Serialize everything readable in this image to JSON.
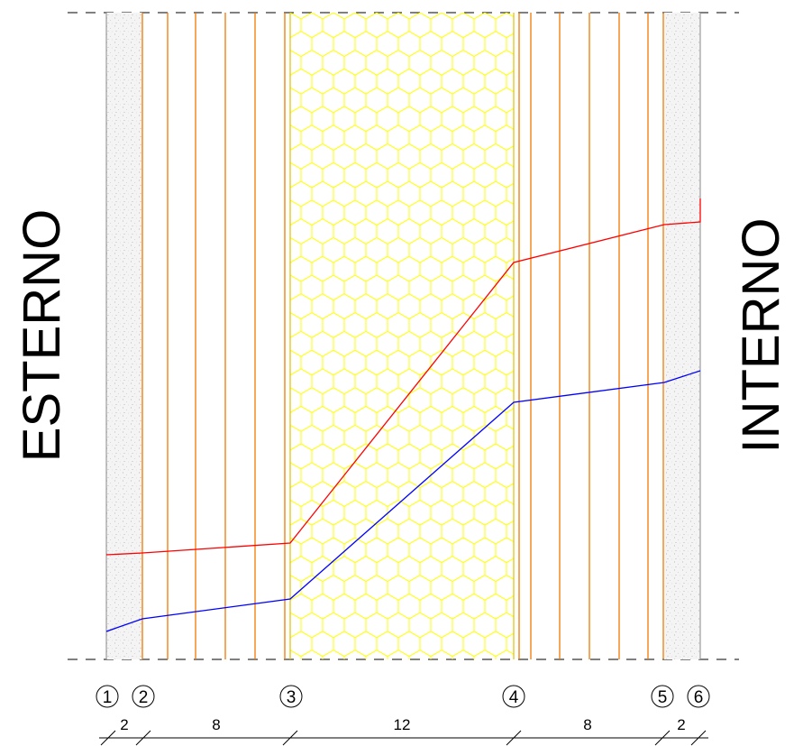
{
  "labels": {
    "exterior": "ESTERNO",
    "interior": "INTERNO"
  },
  "nodes": [
    "1",
    "2",
    "3",
    "4",
    "5",
    "6"
  ],
  "layers": [
    {
      "material": "plaster",
      "thickness": "2",
      "color": "#d9d9d9"
    },
    {
      "material": "brick",
      "thickness": "8",
      "color": "#f07800"
    },
    {
      "material": "insulation",
      "thickness": "12",
      "color": "#ffff00"
    },
    {
      "material": "brick",
      "thickness": "8",
      "color": "#f07800"
    },
    {
      "material": "plaster",
      "thickness": "2",
      "color": "#d9d9d9"
    }
  ],
  "lines": [
    {
      "name": "red-profile",
      "color": "#ff0000"
    },
    {
      "name": "blue-profile",
      "color": "#0000ff"
    }
  ]
}
